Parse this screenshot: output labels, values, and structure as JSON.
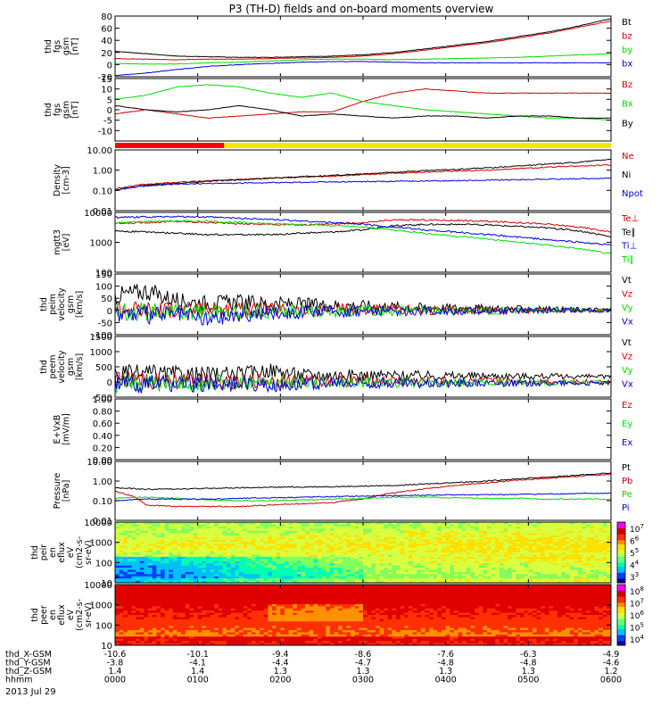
{
  "title": "P3 (TH-D) fields and on-board moments overview",
  "date": "2013 Jul 29",
  "colors": {
    "black": "#000000",
    "red": "#d00000",
    "green": "#00dd00",
    "blue": "#0000dd",
    "orange_red": "#cc0000",
    "yellow": "#f5e600",
    "bar_red": "#ff0000"
  },
  "chart_data": [
    {
      "type": "line",
      "id": "fgs_gsm",
      "ylabel": [
        "thd",
        "fgs",
        "gsm",
        "[nT]"
      ],
      "ylim": [
        -20,
        80
      ],
      "yticks": [
        80,
        60,
        40,
        20,
        0,
        -20
      ],
      "yscale": "linear",
      "series": [
        {
          "name": "Bt",
          "color": "black",
          "values": [
            22,
            18,
            14,
            13,
            12,
            12,
            13,
            14,
            16,
            20,
            26,
            32,
            38,
            46,
            54,
            64,
            76
          ]
        },
        {
          "name": "bz",
          "color": "red",
          "values": [
            10,
            9,
            8,
            9,
            9,
            10,
            11,
            12,
            14,
            18,
            24,
            30,
            36,
            44,
            52,
            62,
            72
          ]
        },
        {
          "name": "by",
          "color": "green",
          "values": [
            2,
            1,
            1,
            3,
            4,
            6,
            8,
            9,
            9,
            8,
            9,
            10,
            11,
            12,
            14,
            16,
            18
          ]
        },
        {
          "name": "bx",
          "color": "blue",
          "values": [
            -18,
            -14,
            -8,
            -3,
            0,
            2,
            4,
            5,
            5,
            4,
            3,
            3,
            3,
            3,
            3,
            3,
            3
          ]
        }
      ]
    },
    {
      "type": "line",
      "id": "fgs_gsm_zoom",
      "ylabel": [
        "thd",
        "fgs",
        "gsm",
        "[nT]"
      ],
      "ylim": [
        -15,
        15
      ],
      "yticks": [
        15,
        10,
        5,
        0,
        -5,
        -10
      ],
      "yscale": "linear",
      "series": [
        {
          "name": "Bz",
          "color": "orange_red",
          "values": [
            -2,
            0,
            -2,
            -4,
            -3,
            -2,
            -1,
            -1,
            4,
            8,
            10,
            9,
            8,
            8,
            8,
            8,
            8
          ]
        },
        {
          "name": "Bx",
          "color": "green",
          "values": [
            5,
            7,
            11,
            12,
            11,
            8,
            6,
            8,
            4,
            2,
            0,
            -1,
            -2,
            -3,
            -4,
            -4,
            -5
          ]
        },
        {
          "name": "By",
          "color": "black",
          "values": [
            2,
            0,
            -1,
            0,
            2,
            0,
            -3,
            -2,
            -3,
            -4,
            -3,
            -3,
            -4,
            -3,
            -3,
            -4,
            -4
          ]
        }
      ]
    },
    {
      "type": "bar_strip",
      "id": "mode_bar",
      "segments": [
        {
          "from": 0,
          "to": 0.22,
          "color": "bar_red"
        },
        {
          "from": 0.22,
          "to": 1,
          "color": "yellow"
        }
      ]
    },
    {
      "type": "line",
      "id": "density",
      "ylabel": [
        "Density",
        "[cm-3]"
      ],
      "ylim": [
        0.01,
        10
      ],
      "yticks": [
        "10.00",
        "1.00",
        "0.10",
        "0.01"
      ],
      "yscale": "log",
      "series": [
        {
          "name": "Ne",
          "color": "red",
          "values": [
            0.12,
            0.2,
            0.25,
            0.3,
            0.35,
            0.4,
            0.45,
            0.5,
            0.6,
            0.7,
            0.8,
            0.9,
            1.0,
            1.2,
            1.4,
            1.6,
            1.8
          ]
        },
        {
          "name": "Ni",
          "color": "black",
          "values": [
            0.1,
            0.18,
            0.22,
            0.28,
            0.33,
            0.4,
            0.48,
            0.55,
            0.65,
            0.8,
            0.95,
            1.1,
            1.3,
            1.6,
            2.0,
            2.5,
            3.5
          ]
        },
        {
          "name": "Npot",
          "color": "blue",
          "values": [
            0.1,
            0.17,
            0.2,
            0.22,
            0.23,
            0.24,
            0.25,
            0.26,
            0.27,
            0.28,
            0.29,
            0.3,
            0.32,
            0.34,
            0.36,
            0.38,
            0.4
          ]
        }
      ]
    },
    {
      "type": "line",
      "id": "temperature",
      "ylabel": [
        "mgtt3",
        "[eV]"
      ],
      "ylim": [
        100,
        10000
      ],
      "yticks": [
        "10000",
        "1000",
        "100"
      ],
      "yscale": "log",
      "series": [
        {
          "name": "Te⊥",
          "color": "red",
          "values": [
            4200,
            4600,
            5000,
            4600,
            4200,
            4000,
            3800,
            4200,
            4400,
            5600,
            5600,
            5400,
            5000,
            4600,
            4000,
            3200,
            2200
          ]
        },
        {
          "name": "Te∥",
          "color": "black",
          "values": [
            2400,
            2200,
            2000,
            1800,
            1800,
            1800,
            2000,
            2200,
            2600,
            3600,
            4000,
            4000,
            3800,
            3400,
            3000,
            2400,
            1500
          ]
        },
        {
          "name": "Ti⊥",
          "color": "blue",
          "values": [
            6800,
            7000,
            7200,
            7000,
            6400,
            5800,
            5200,
            4600,
            4000,
            3200,
            2600,
            2200,
            1800,
            1500,
            1200,
            1000,
            800
          ]
        },
        {
          "name": "Ti∥",
          "color": "green",
          "values": [
            4400,
            5000,
            5200,
            5000,
            4600,
            4200,
            4000,
            3600,
            3200,
            2600,
            2000,
            1600,
            1300,
            1000,
            800,
            600,
            400
          ]
        }
      ]
    },
    {
      "type": "line",
      "id": "peim_velocity",
      "ylabel": [
        "thd",
        "peim",
        "velocity",
        "gsm",
        "[km/s]"
      ],
      "ylim": [
        -100,
        150
      ],
      "yticks": [
        150,
        100,
        50,
        0,
        -50,
        -100
      ],
      "yscale": "linear",
      "series": [
        {
          "name": "Vt",
          "color": "black",
          "values": [
            60,
            80,
            40,
            30,
            35,
            28,
            25,
            22,
            20,
            15,
            12,
            10,
            8,
            6,
            5,
            4,
            3
          ]
        },
        {
          "name": "Vz",
          "color": "red",
          "values": [
            10,
            5,
            5,
            4,
            3,
            3,
            2,
            2,
            2,
            1,
            1,
            1,
            1,
            0,
            0,
            0,
            0
          ]
        },
        {
          "name": "Vy",
          "color": "green",
          "values": [
            0,
            -5,
            -5,
            -4,
            -6,
            -3,
            -3,
            -2,
            -2,
            -2,
            -1,
            -1,
            -1,
            0,
            0,
            0,
            0
          ]
        },
        {
          "name": "Vx",
          "color": "blue",
          "values": [
            -10,
            -20,
            -15,
            -40,
            -20,
            -10,
            -8,
            -5,
            -4,
            -3,
            -2,
            -2,
            -1,
            -1,
            0,
            0,
            0
          ]
        }
      ]
    },
    {
      "type": "line",
      "id": "peem_velocity",
      "ylabel": [
        "thd",
        "peem",
        "velocity",
        "gsm",
        "[km/s]"
      ],
      "ylim": [
        -500,
        1500
      ],
      "yticks": [
        1500,
        1000,
        500,
        0,
        -500
      ],
      "yscale": "linear",
      "series": [
        {
          "name": "Vt",
          "color": "black",
          "values": [
            250,
            280,
            250,
            240,
            260,
            400,
            240,
            230,
            220,
            220,
            210,
            200,
            200,
            190,
            190,
            180,
            180
          ]
        },
        {
          "name": "Vz",
          "color": "red",
          "values": [
            50,
            40,
            30,
            30,
            30,
            30,
            30,
            30,
            20,
            20,
            20,
            20,
            20,
            20,
            10,
            10,
            10
          ]
        },
        {
          "name": "Vy",
          "color": "green",
          "values": [
            -30,
            -30,
            -40,
            -30,
            -30,
            -60,
            -30,
            -30,
            -20,
            -20,
            -20,
            -20,
            -20,
            -20,
            -20,
            -20,
            -20
          ]
        },
        {
          "name": "Vx",
          "color": "blue",
          "values": [
            -60,
            -80,
            -60,
            -60,
            -60,
            -100,
            -60,
            -60,
            -50,
            -50,
            -40,
            -40,
            -40,
            -40,
            -40,
            -40,
            -40
          ]
        }
      ]
    },
    {
      "type": "line",
      "id": "efield",
      "ylabel": [
        "E+VxB",
        "[mV/m]"
      ],
      "ylim": [
        0,
        1
      ],
      "yticks": [
        "1.00",
        "0.80",
        "0.60",
        "0.40",
        "0.20",
        "0.00"
      ],
      "yscale": "linear",
      "series": [
        {
          "name": "Ez",
          "color": "red",
          "values": []
        },
        {
          "name": "Ey",
          "color": "green",
          "values": []
        },
        {
          "name": "Ex",
          "color": "blue",
          "values": []
        }
      ]
    },
    {
      "type": "line",
      "id": "pressure",
      "ylabel": [
        "Pressure",
        "[nPa]"
      ],
      "ylim": [
        0.01,
        10
      ],
      "yticks": [
        "10.00",
        "1.00",
        "0.10",
        "0.01"
      ],
      "yscale": "log",
      "series": [
        {
          "name": "Pt",
          "color": "black",
          "values": [
            0.45,
            0.38,
            0.4,
            0.42,
            0.45,
            0.48,
            0.5,
            0.52,
            0.55,
            0.6,
            0.7,
            0.85,
            1.0,
            1.3,
            1.6,
            2.0,
            2.6
          ]
        },
        {
          "name": "Pb",
          "color": "red",
          "values": [
            0.3,
            0.06,
            0.05,
            0.05,
            0.05,
            0.06,
            0.07,
            0.08,
            0.12,
            0.25,
            0.4,
            0.6,
            0.8,
            1.1,
            1.4,
            1.8,
            2.2
          ]
        },
        {
          "name": "Pe",
          "color": "green",
          "values": [
            0.13,
            0.15,
            0.13,
            0.11,
            0.1,
            0.1,
            0.11,
            0.12,
            0.13,
            0.15,
            0.15,
            0.14,
            0.13,
            0.13,
            0.12,
            0.12,
            0.12
          ]
        },
        {
          "name": "Pi",
          "color": "blue",
          "values": [
            0.1,
            0.12,
            0.12,
            0.12,
            0.13,
            0.14,
            0.15,
            0.16,
            0.17,
            0.18,
            0.19,
            0.2,
            0.2,
            0.21,
            0.22,
            0.23,
            0.24
          ]
        }
      ]
    },
    {
      "type": "heatmap",
      "id": "peir_spectrogram",
      "ylabel": [
        "thd",
        "peir",
        "en",
        "eflux",
        "eV",
        "(cm2-s-",
        "sr-eV)"
      ],
      "ylim": [
        10,
        10000
      ],
      "yticks": [
        "10000",
        "1000",
        "100",
        "10"
      ],
      "yscale": "log",
      "colorbar_ticks": [
        "10",
        "6",
        "5",
        "4",
        "3"
      ],
      "colorbar_exponents": [
        "7",
        "6",
        "5",
        "4",
        "3"
      ]
    },
    {
      "type": "heatmap",
      "id": "peer_spectrogram",
      "ylabel": [
        "thd",
        "peer",
        "en",
        "eflux",
        "eV",
        "(cm2-s-",
        "sr-eV)"
      ],
      "ylim": [
        10,
        10000
      ],
      "yticks": [
        "10000",
        "1000",
        "100",
        "10"
      ],
      "yscale": "log",
      "colorbar_ticks": [
        "10",
        "10",
        "10",
        "10",
        "10"
      ],
      "colorbar_exponents": [
        "8",
        "7",
        "6",
        "5",
        "4"
      ]
    }
  ],
  "x_axis": {
    "row_labels": [
      "thd_X-GSM",
      "thd_Y-GSM",
      "thd_Z-GSM",
      "hhmm"
    ],
    "ticks": [
      {
        "x_gsm": "-10.6",
        "y_gsm": "-3.8",
        "z_gsm": "1.4",
        "hhmm": "0000"
      },
      {
        "x_gsm": "-10.1",
        "y_gsm": "-4.1",
        "z_gsm": "1.4",
        "hhmm": "0100"
      },
      {
        "x_gsm": "-9.4",
        "y_gsm": "-4.4",
        "z_gsm": "1.3",
        "hhmm": "0200"
      },
      {
        "x_gsm": "-8.6",
        "y_gsm": "-4.7",
        "z_gsm": "1.3",
        "hhmm": "0300"
      },
      {
        "x_gsm": "-7.6",
        "y_gsm": "-4.8",
        "z_gsm": "1.3",
        "hhmm": "0400"
      },
      {
        "x_gsm": "-6.3",
        "y_gsm": "-4.8",
        "z_gsm": "1.3",
        "hhmm": "0500"
      },
      {
        "x_gsm": "-4.9",
        "y_gsm": "-4.6",
        "z_gsm": "1.2",
        "hhmm": "0600"
      }
    ]
  }
}
